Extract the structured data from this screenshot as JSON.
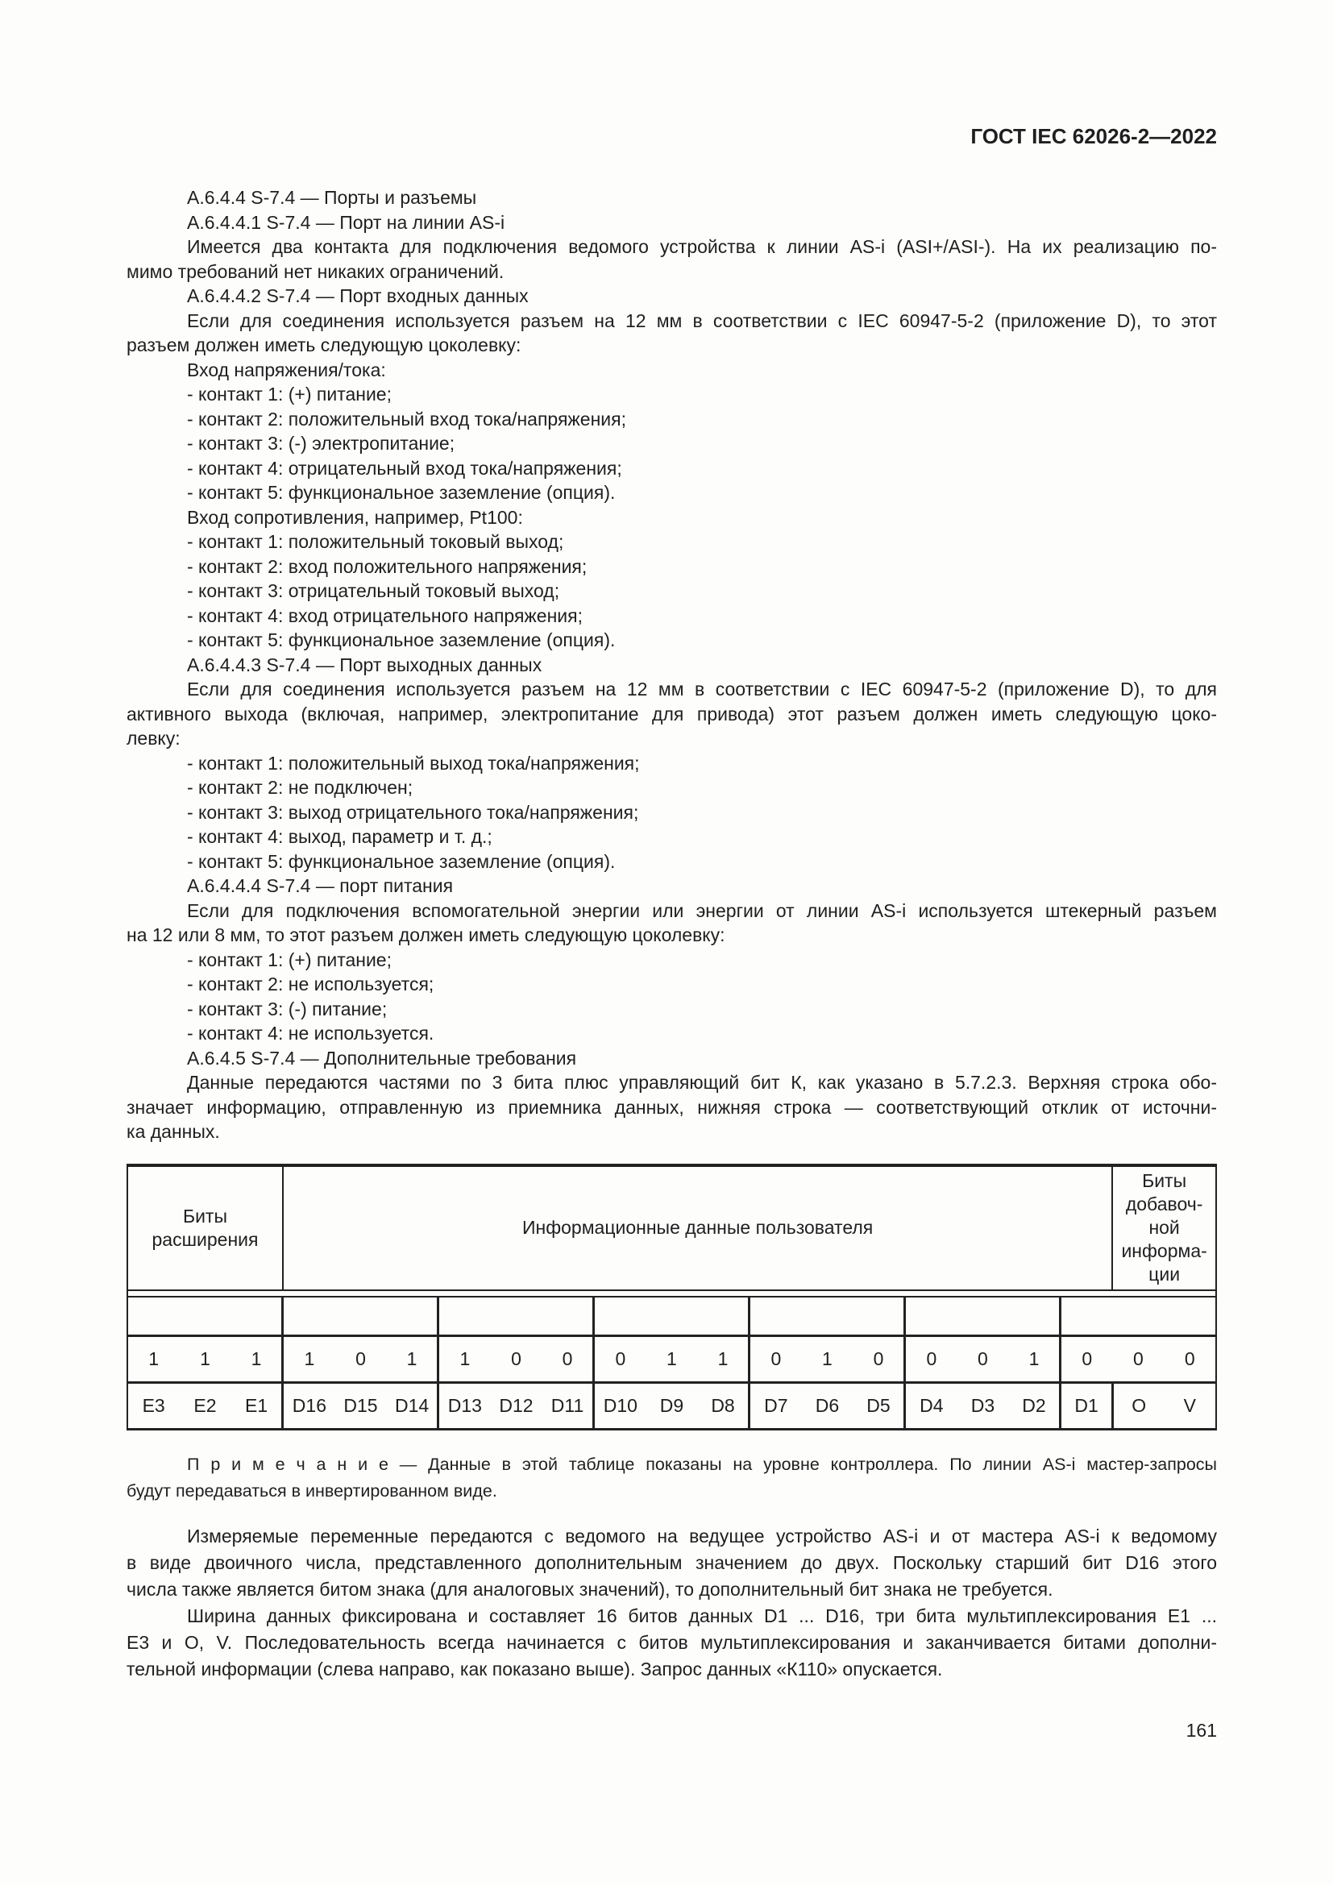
{
  "header": {
    "title": "ГОСТ IEC 62026-2—2022"
  },
  "body_lines": [
    {
      "text": "А.6.4.4 S-7.4 — Порты и разъемы",
      "indent": true
    },
    {
      "text": "А.6.4.4.1 S-7.4 — Порт на линии AS-i",
      "indent": true
    },
    {
      "text": "Имеется два контакта для подключения ведомого устройства к линии AS-i (ASI+/ASI-). На их реализацию по-",
      "indent": true,
      "justify": true
    },
    {
      "text": "мимо требований нет никаких ограничений."
    },
    {
      "text": "А.6.4.4.2 S-7.4 — Порт входных данных",
      "indent": true
    },
    {
      "text": "Если для соединения используется разъем на 12 мм в соответствии с IEC 60947-5-2 (приложение D), то этот",
      "indent": true,
      "justify": true
    },
    {
      "text": "разъем должен иметь следующую цоколевку:"
    },
    {
      "text": "Вход напряжения/тока:",
      "indent": true
    },
    {
      "text": "- контакт 1: (+) питание;",
      "indent": true
    },
    {
      "text": "- контакт 2: положительный вход тока/напряжения;",
      "indent": true
    },
    {
      "text": "- контакт 3: (-) электропитание;",
      "indent": true
    },
    {
      "text": "- контакт 4: отрицательный вход тока/напряжения;",
      "indent": true
    },
    {
      "text": "- контакт 5: функциональное заземление (опция).",
      "indent": true
    },
    {
      "text": "Вход сопротивления, например, Pt100:",
      "indent": true
    },
    {
      "text": "- контакт 1: положительный токовый выход;",
      "indent": true
    },
    {
      "text": "- контакт 2: вход положительного напряжения;",
      "indent": true
    },
    {
      "text": "- контакт 3: отрицательный токовый выход;",
      "indent": true
    },
    {
      "text": "- контакт 4: вход отрицательного напряжения;",
      "indent": true
    },
    {
      "text": "- контакт 5: функциональное заземление (опция).",
      "indent": true
    },
    {
      "text": "А.6.4.4.3 S-7.4 — Порт выходных данных",
      "indent": true
    },
    {
      "text": "Если для соединения используется разъем на 12 мм в соответствии с IEC 60947-5-2 (приложение D), то для",
      "indent": true,
      "justify": true
    },
    {
      "text": "активного выхода (включая, например, электропитание для привода) этот разъем должен иметь следующую цоко-",
      "justify": true
    },
    {
      "text": "левку:"
    },
    {
      "text": "- контакт 1: положительный выход тока/напряжения;",
      "indent": true
    },
    {
      "text": "- контакт 2: не подключен;",
      "indent": true
    },
    {
      "text": "- контакт 3: выход отрицательного тока/напряжения;",
      "indent": true
    },
    {
      "text": "- контакт 4: выход, параметр и т. д.;",
      "indent": true
    },
    {
      "text": "- контакт 5: функциональное заземление (опция).",
      "indent": true
    },
    {
      "text": "А.6.4.4.4 S-7.4 — порт питания",
      "indent": true
    },
    {
      "text": "Если для подключения вспомогательной энергии или энергии от линии AS-i используется штекерный разъем",
      "indent": true,
      "justify": true
    },
    {
      "text": "на 12 или 8 мм, то этот разъем должен иметь следующую цоколевку:"
    },
    {
      "text": "- контакт 1: (+) питание;",
      "indent": true
    },
    {
      "text": "- контакт 2: не используется;",
      "indent": true
    },
    {
      "text": "- контакт 3: (-) питание;",
      "indent": true
    },
    {
      "text": "- контакт 4: не используется.",
      "indent": true
    },
    {
      "text": "А.6.4.5 S-7.4 — Дополнительные требования",
      "indent": true
    },
    {
      "text": "Данные передаются частями по 3 бита плюс управляющий бит К, как указано в 5.7.2.3. Верхняя строка обо-",
      "indent": true,
      "justify": true
    },
    {
      "text": "значает информацию, отправленную из приемника данных, нижняя строка — соответствующий отклик от источни-",
      "justify": true
    },
    {
      "text": "ка данных."
    }
  ],
  "table": {
    "col_headers": [
      "Биты\nрасширения",
      "Информационные данные пользователя",
      "Биты\nдобавоч-\nной\nинформа-\nции"
    ],
    "values": [
      "1",
      "1",
      "1",
      "1",
      "0",
      "1",
      "1",
      "0",
      "0",
      "0",
      "1",
      "1",
      "0",
      "1",
      "0",
      "0",
      "0",
      "1",
      "0",
      "0",
      "0"
    ],
    "labels": [
      "E3",
      "E2",
      "E1",
      "D16",
      "D15",
      "D14",
      "D13",
      "D12",
      "D11",
      "D10",
      "D9",
      "D8",
      "D7",
      "D6",
      "D5",
      "D4",
      "D3",
      "D2",
      "D1",
      "O",
      "V"
    ]
  },
  "note_lines": [
    {
      "text": "П р и м е ч а н и е  — Данные в этой таблице показаны на уровне контроллера. По линии AS-i мастер-запросы",
      "indent": true,
      "justify": true
    },
    {
      "text": "будут передаваться в инвертированном виде."
    }
  ],
  "tail_lines": [
    {
      "text": "Измеряемые переменные передаются с ведомого на ведущее устройство AS-i и от мастера AS-i к ведомому",
      "indent": true,
      "justify": true
    },
    {
      "text": "в виде двоичного числа, представленного дополнительным значением до двух. Поскольку старший бит D16 этого",
      "justify": true
    },
    {
      "text": "числа также является битом знака (для аналоговых значений), то дополнительный бит знака не требуется."
    },
    {
      "text": "Ширина данных фиксирована и составляет 16 битов данных D1 ... D16, три бита мультиплексирования E1 ...",
      "indent": true,
      "justify": true
    },
    {
      "text": "E3 и O, V. Последовательность всегда начинается с битов мультиплексирования и заканчивается битами дополни-",
      "justify": true
    },
    {
      "text": "тельной информации (слева направо, как показано выше). Запрос данных «К110» опускается."
    }
  ],
  "footer": {
    "page_number": "161"
  }
}
